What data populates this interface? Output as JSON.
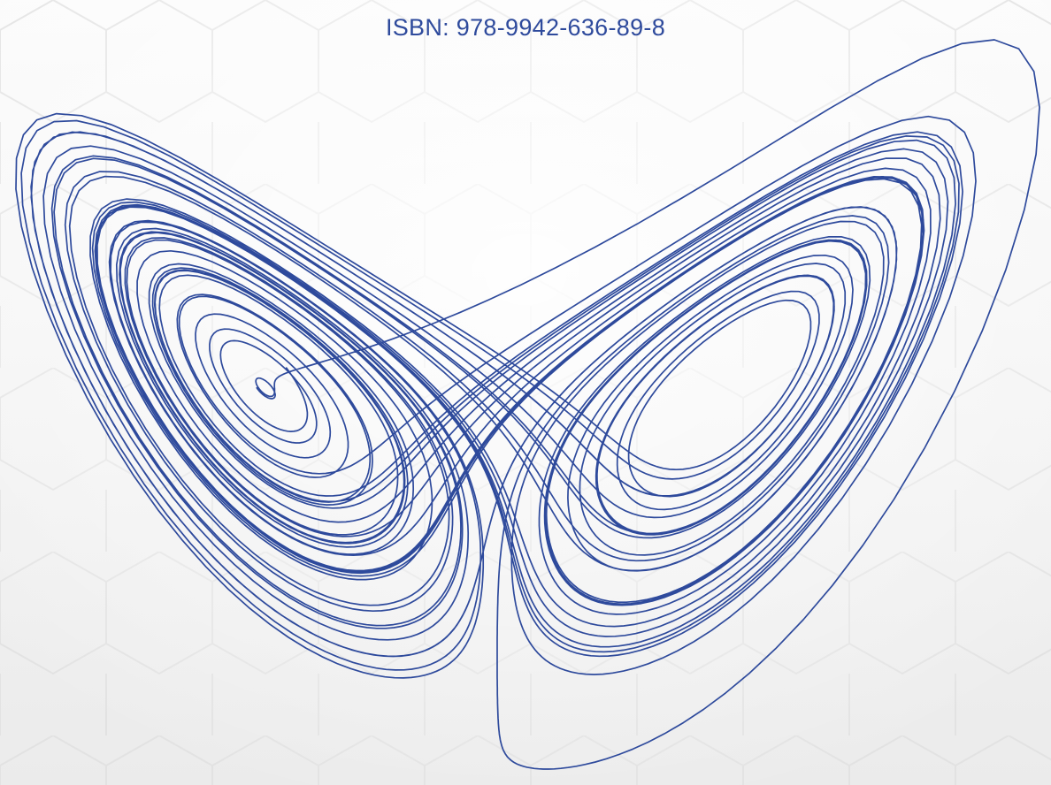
{
  "cover": {
    "isbn_text": "ISBN:  978-9942-636-89-8",
    "curve_color": "#2e4a9c",
    "background_color": "#f4f4f4"
  }
}
